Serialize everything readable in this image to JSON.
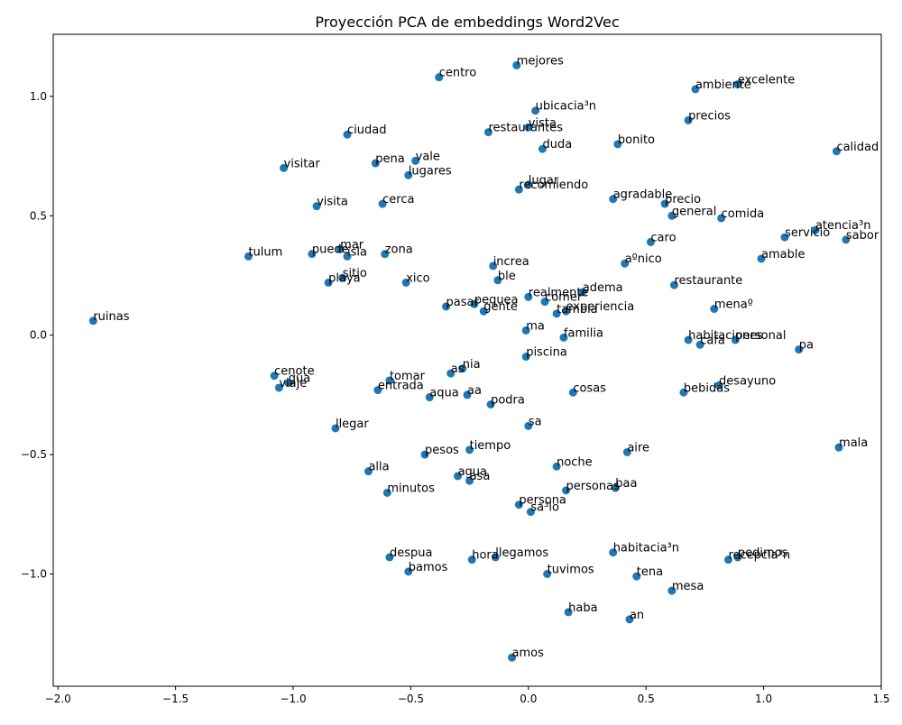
{
  "chart_data": {
    "type": "scatter",
    "title": "Proyección PCA de embeddings Word2Vec",
    "xlabel": "",
    "ylabel": "",
    "xlim": [
      -2.02,
      1.5
    ],
    "ylim": [
      -1.47,
      1.26
    ],
    "xticks": [
      -2.0,
      -1.5,
      -1.0,
      -0.5,
      0.0,
      0.5,
      1.0,
      1.5
    ],
    "xtick_labels": [
      "−2.0",
      "−1.5",
      "−1.0",
      "−0.5",
      "0.0",
      "0.5",
      "1.0",
      "1.5"
    ],
    "yticks": [
      -1.0,
      -0.5,
      0.0,
      0.5,
      1.0
    ],
    "ytick_labels": [
      "−1.0",
      "−0.5",
      "0.0",
      "0.5",
      "1.0"
    ],
    "grid": false,
    "point_color": "#1f77b4",
    "points": [
      {
        "label": "mejores",
        "x": -0.05,
        "y": 1.13
      },
      {
        "label": "centro",
        "x": -0.38,
        "y": 1.08
      },
      {
        "label": "excelente",
        "x": 0.89,
        "y": 1.05
      },
      {
        "label": "ambiente",
        "x": 0.71,
        "y": 1.03
      },
      {
        "label": "ubicacia³n",
        "x": 0.03,
        "y": 0.94
      },
      {
        "label": "precios",
        "x": 0.68,
        "y": 0.9
      },
      {
        "label": "vista",
        "x": 0.0,
        "y": 0.87
      },
      {
        "label": "restaurantes",
        "x": -0.17,
        "y": 0.85
      },
      {
        "label": "ciudad",
        "x": -0.77,
        "y": 0.84
      },
      {
        "label": "bonito",
        "x": 0.38,
        "y": 0.8
      },
      {
        "label": "duda",
        "x": 0.06,
        "y": 0.78
      },
      {
        "label": "calidad",
        "x": 1.31,
        "y": 0.77
      },
      {
        "label": "vale",
        "x": -0.48,
        "y": 0.73
      },
      {
        "label": "pena",
        "x": -0.65,
        "y": 0.72
      },
      {
        "label": "visitar",
        "x": -1.04,
        "y": 0.7
      },
      {
        "label": "lugares",
        "x": -0.51,
        "y": 0.67
      },
      {
        "label": "lugar",
        "x": 0.0,
        "y": 0.63
      },
      {
        "label": "recomiendo",
        "x": -0.04,
        "y": 0.61
      },
      {
        "label": "agradable",
        "x": 0.36,
        "y": 0.57
      },
      {
        "label": "precio",
        "x": 0.58,
        "y": 0.55
      },
      {
        "label": "cerca",
        "x": -0.62,
        "y": 0.55
      },
      {
        "label": "visita",
        "x": -0.9,
        "y": 0.54
      },
      {
        "label": "general",
        "x": 0.61,
        "y": 0.5
      },
      {
        "label": "comida",
        "x": 0.82,
        "y": 0.49
      },
      {
        "label": "atencia³n",
        "x": 1.22,
        "y": 0.44
      },
      {
        "label": "servicio",
        "x": 1.09,
        "y": 0.41
      },
      {
        "label": "sabor",
        "x": 1.35,
        "y": 0.4
      },
      {
        "label": "caro",
        "x": 0.52,
        "y": 0.39
      },
      {
        "label": "mar",
        "x": -0.8,
        "y": 0.36
      },
      {
        "label": "puede",
        "x": -0.92,
        "y": 0.34
      },
      {
        "label": "isla",
        "x": -0.77,
        "y": 0.33
      },
      {
        "label": "zona",
        "x": -0.61,
        "y": 0.34
      },
      {
        "label": "tulum",
        "x": -1.19,
        "y": 0.33
      },
      {
        "label": "amable",
        "x": 0.99,
        "y": 0.32
      },
      {
        "label": "aºnico",
        "x": 0.41,
        "y": 0.3
      },
      {
        "label": "increa",
        "x": -0.15,
        "y": 0.29
      },
      {
        "label": "sitio",
        "x": -0.79,
        "y": 0.24
      },
      {
        "label": "ble",
        "x": -0.13,
        "y": 0.23
      },
      {
        "label": "playa",
        "x": -0.85,
        "y": 0.22
      },
      {
        "label": "xico",
        "x": -0.52,
        "y": 0.22
      },
      {
        "label": "restaurante",
        "x": 0.62,
        "y": 0.21
      },
      {
        "label": "adema",
        "x": 0.23,
        "y": 0.18
      },
      {
        "label": "realmente",
        "x": 0.0,
        "y": 0.16
      },
      {
        "label": "comer",
        "x": 0.07,
        "y": 0.14
      },
      {
        "label": "pequea",
        "x": -0.23,
        "y": 0.13
      },
      {
        "label": "pasar",
        "x": -0.35,
        "y": 0.12
      },
      {
        "label": "experiencia",
        "x": 0.16,
        "y": 0.1
      },
      {
        "label": "tambia",
        "x": 0.12,
        "y": 0.09
      },
      {
        "label": "menaº",
        "x": 0.79,
        "y": 0.11
      },
      {
        "label": "gente",
        "x": -0.19,
        "y": 0.1
      },
      {
        "label": "ma",
        "x": -0.01,
        "y": 0.02
      },
      {
        "label": "familia",
        "x": 0.15,
        "y": -0.01
      },
      {
        "label": "habitaciones",
        "x": 0.68,
        "y": -0.02
      },
      {
        "label": "personal",
        "x": 0.88,
        "y": -0.02
      },
      {
        "label": "cafa",
        "x": 0.73,
        "y": -0.04
      },
      {
        "label": "pa",
        "x": 1.15,
        "y": -0.06
      },
      {
        "label": "piscina",
        "x": -0.01,
        "y": -0.09
      },
      {
        "label": "nia",
        "x": -0.28,
        "y": -0.14
      },
      {
        "label": "as",
        "x": -0.33,
        "y": -0.16
      },
      {
        "label": "cenote",
        "x": -1.08,
        "y": -0.17
      },
      {
        "label": "tomar",
        "x": -0.59,
        "y": -0.19
      },
      {
        "label": "gua",
        "x": -1.02,
        "y": -0.2
      },
      {
        "label": "desayuno",
        "x": 0.81,
        "y": -0.21
      },
      {
        "label": "viaje",
        "x": -1.06,
        "y": -0.22
      },
      {
        "label": "entrada",
        "x": -0.64,
        "y": -0.23
      },
      {
        "label": "cosas",
        "x": 0.19,
        "y": -0.24
      },
      {
        "label": "bebidas",
        "x": 0.66,
        "y": -0.24
      },
      {
        "label": "aa",
        "x": -0.26,
        "y": -0.25
      },
      {
        "label": "aqua",
        "x": -0.42,
        "y": -0.26
      },
      {
        "label": "podra",
        "x": -0.16,
        "y": -0.29
      },
      {
        "label": "sa",
        "x": 0.0,
        "y": -0.38
      },
      {
        "label": "llegar",
        "x": -0.82,
        "y": -0.39
      },
      {
        "label": "mala",
        "x": 1.32,
        "y": -0.47
      },
      {
        "label": "tiempo",
        "x": -0.25,
        "y": -0.48
      },
      {
        "label": "aire",
        "x": 0.42,
        "y": -0.49
      },
      {
        "label": "pesos",
        "x": -0.44,
        "y": -0.5
      },
      {
        "label": "noche",
        "x": 0.12,
        "y": -0.55
      },
      {
        "label": "alla",
        "x": -0.68,
        "y": -0.57
      },
      {
        "label": "agua",
        "x": -0.3,
        "y": -0.59
      },
      {
        "label": "asa",
        "x": -0.25,
        "y": -0.61
      },
      {
        "label": "baa",
        "x": 0.37,
        "y": -0.64
      },
      {
        "label": "personas",
        "x": 0.16,
        "y": -0.65
      },
      {
        "label": "minutos",
        "x": -0.6,
        "y": -0.66
      },
      {
        "label": "persona",
        "x": -0.04,
        "y": -0.71
      },
      {
        "label": "sa³lo",
        "x": 0.01,
        "y": -0.74
      },
      {
        "label": "habitacia³n",
        "x": 0.36,
        "y": -0.91
      },
      {
        "label": "despua",
        "x": -0.59,
        "y": -0.93
      },
      {
        "label": "hora",
        "x": -0.24,
        "y": -0.94
      },
      {
        "label": "llegamos",
        "x": -0.14,
        "y": -0.93
      },
      {
        "label": "pedimos",
        "x": 0.89,
        "y": -0.93
      },
      {
        "label": "recepcia³n",
        "x": 0.85,
        "y": -0.94
      },
      {
        "label": "tuvimos",
        "x": 0.08,
        "y": -1.0
      },
      {
        "label": "bamos",
        "x": -0.51,
        "y": -0.99
      },
      {
        "label": "tena",
        "x": 0.46,
        "y": -1.01
      },
      {
        "label": "mesa",
        "x": 0.61,
        "y": -1.07
      },
      {
        "label": "haba",
        "x": 0.17,
        "y": -1.16
      },
      {
        "label": "an",
        "x": 0.43,
        "y": -1.19
      },
      {
        "label": "amos",
        "x": -0.07,
        "y": -1.35
      },
      {
        "label": "ruinas",
        "x": -1.85,
        "y": 0.06
      }
    ]
  }
}
